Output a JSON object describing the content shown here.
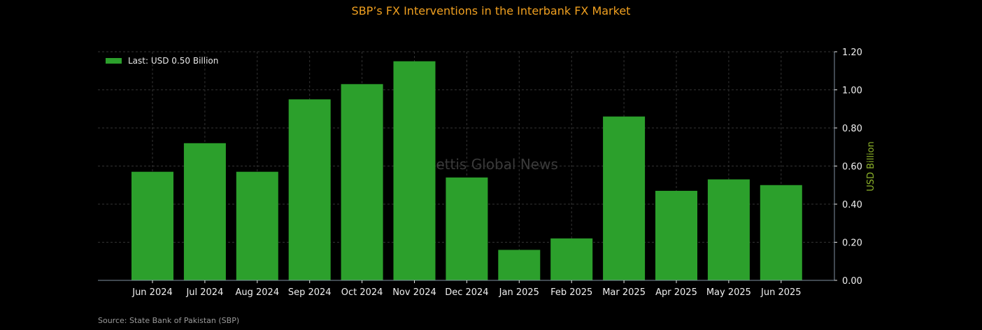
{
  "header": {
    "title": "SBP’s FX Interventions in the Interbank FX Market"
  },
  "footer": {
    "source": "Source: State Bank of Pakistan (SBP)"
  },
  "watermark": "Mettis Global News",
  "colors": {
    "bar": "#2ca02c",
    "title": "#f0a020",
    "ylabel": "#8db32a",
    "axis": "#8090a0",
    "grid": "#333333"
  },
  "chart_data": {
    "type": "bar",
    "title": "SBP’s FX Interventions in the Interbank FX Market",
    "xlabel": "",
    "ylabel": "USD Billion",
    "y_axis_side": "right",
    "ylim": [
      0,
      1.2
    ],
    "yticks": [
      "0.00",
      "0.20",
      "0.40",
      "0.60",
      "0.80",
      "1.00",
      "1.20"
    ],
    "ytick_values": [
      0,
      0.2,
      0.4,
      0.6,
      0.8,
      1.0,
      1.2
    ],
    "grid": true,
    "legend": {
      "label": "Last: USD 0.50 Billion",
      "placement": "top-left"
    },
    "categories": [
      "Jun 2024",
      "Jul 2024",
      "Aug 2024",
      "Sep 2024",
      "Oct 2024",
      "Nov 2024",
      "Dec 2024",
      "Jan 2025",
      "Feb 2025",
      "Mar 2025",
      "Apr 2025",
      "May 2025",
      "Jun 2025"
    ],
    "values": [
      0.57,
      0.72,
      0.57,
      0.95,
      1.03,
      1.15,
      0.54,
      0.16,
      0.22,
      0.86,
      0.47,
      0.53,
      0.5
    ]
  }
}
